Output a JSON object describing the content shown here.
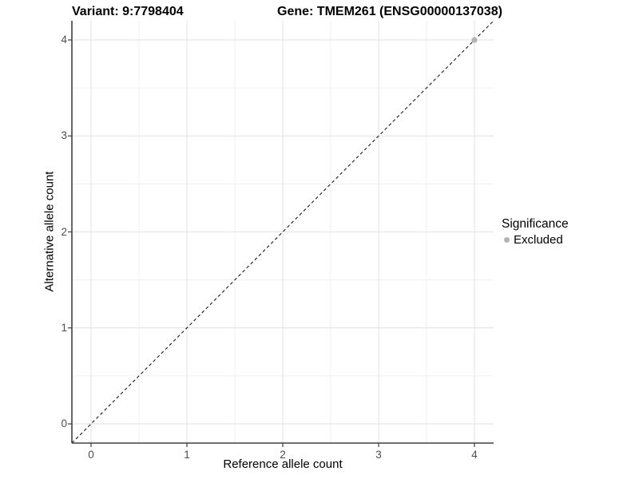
{
  "title": {
    "variant": "Variant: 9:7798404",
    "gene": "Gene: TMEM261 (ENSG00000137038)"
  },
  "axes": {
    "x_label": "Reference allele count",
    "y_label": "Alternative allele count"
  },
  "legend": {
    "title": "Significance",
    "items": [
      {
        "label": "Excluded",
        "color": "#b4b4b4"
      }
    ]
  },
  "chart_data": {
    "type": "scatter",
    "title": "Variant: 9:7798404   Gene: TMEM261 (ENSG00000137038)",
    "xlabel": "Reference allele count",
    "ylabel": "Alternative allele count",
    "xlim": [
      -0.2,
      4.2
    ],
    "ylim": [
      -0.2,
      4.2
    ],
    "xticks": [
      0,
      1,
      2,
      3,
      4
    ],
    "yticks": [
      0,
      1,
      2,
      3,
      4
    ],
    "grid": "major and minor, light grey on white",
    "legend_position": "right-center",
    "series": [
      {
        "name": "Excluded",
        "color": "#b4b4b4",
        "points": [
          {
            "x": 4,
            "y": 4
          }
        ]
      }
    ],
    "reference_line": {
      "type": "identity y=x",
      "style": "dashed",
      "color": "#1a1a1a",
      "from": {
        "x": -0.2,
        "y": -0.2
      },
      "to": {
        "x": 4.2,
        "y": 4.2
      }
    }
  },
  "colors": {
    "excluded_point": "#b4b4b4",
    "grid_major": "#e3e3e3",
    "grid_minor": "#f0f0f0",
    "axis_line": "#404040",
    "tick_text": "#4d4d4d"
  }
}
